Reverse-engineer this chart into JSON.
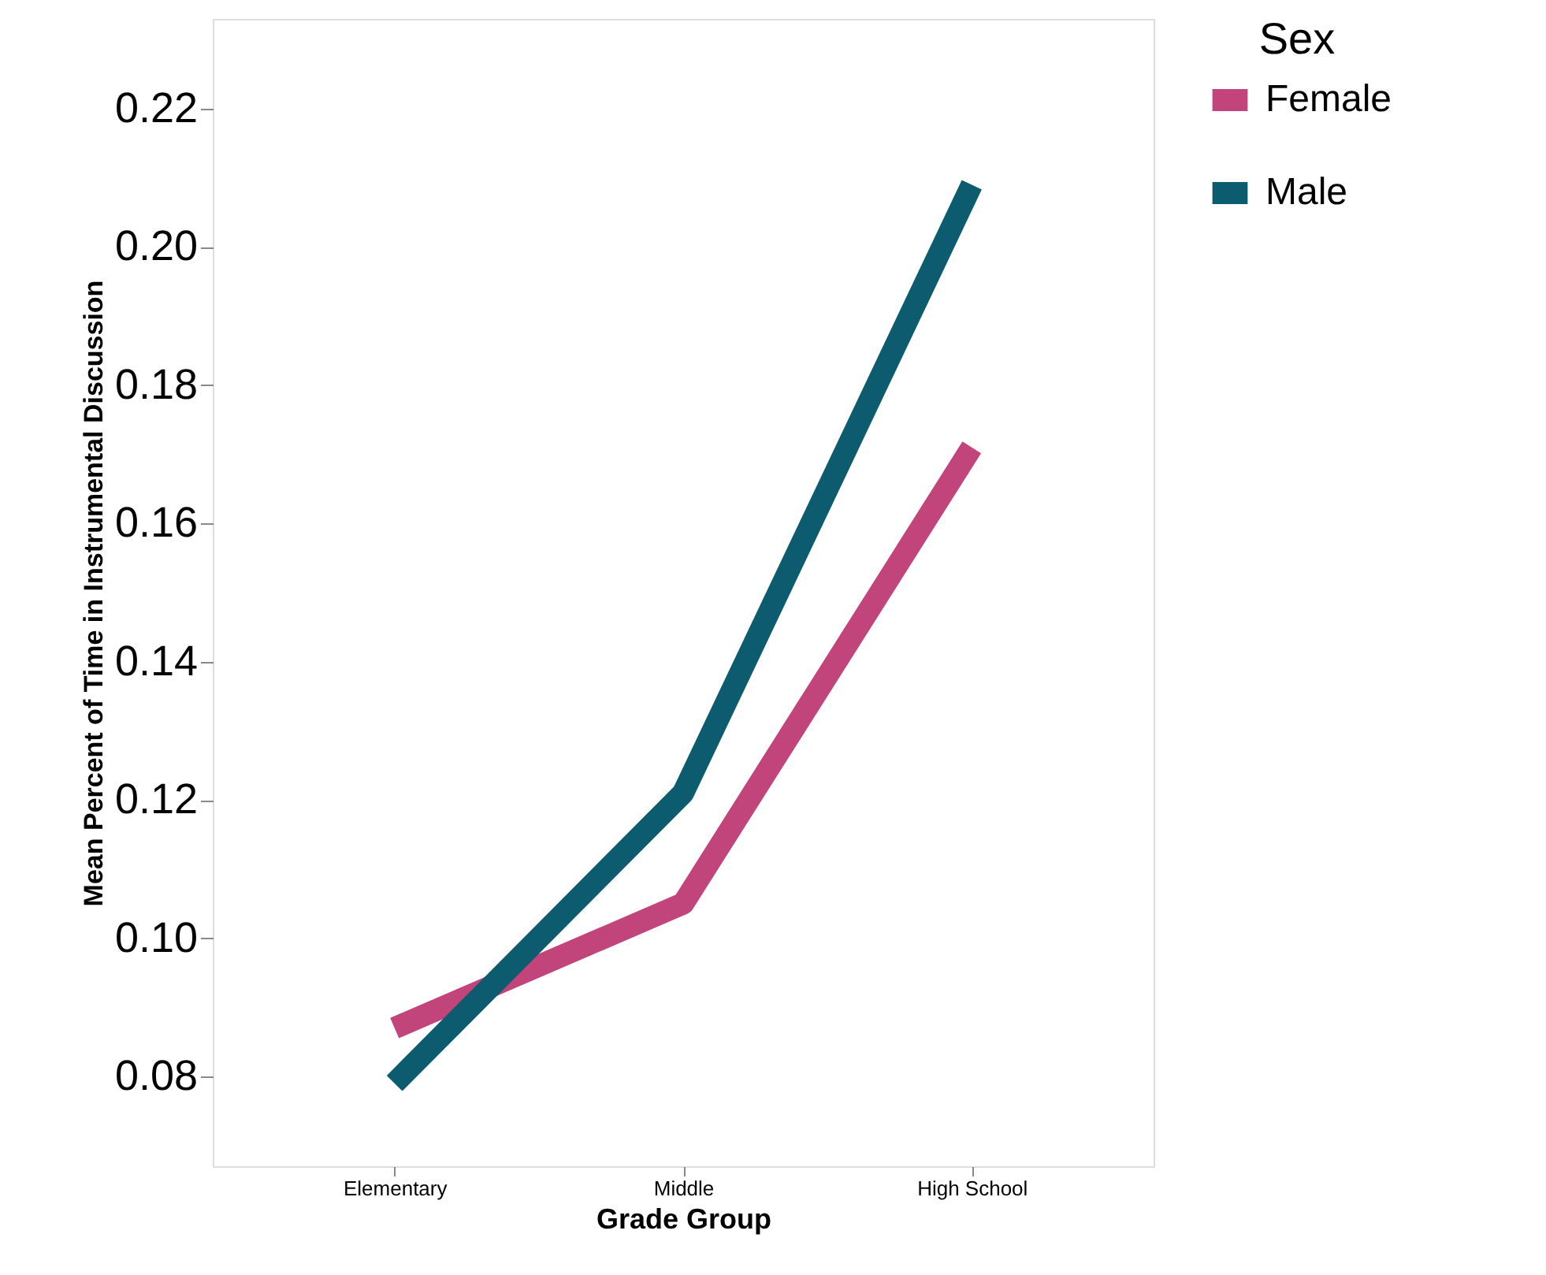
{
  "chart_data": {
    "type": "line",
    "xlabel": "Grade Group",
    "ylabel": "Mean Percent of Time in Instrumental Discussion",
    "legend_title": "Sex",
    "categories": [
      "Elementary",
      "Middle",
      "High School"
    ],
    "series": [
      {
        "name": "Female",
        "color": "#c1447b",
        "values": [
          0.087,
          0.105,
          0.171
        ]
      },
      {
        "name": "Male",
        "color": "#0d5b6f",
        "values": [
          0.079,
          0.121,
          0.209
        ]
      }
    ],
    "ylim": [
      0.067,
      0.233
    ],
    "yticks": [
      0.08,
      {
        "value": 0.1,
        "label": "0.10"
      },
      0.12,
      0.14,
      0.16,
      0.18,
      {
        "value": 0.2,
        "label": "0.20"
      },
      0.22
    ],
    "grid": false,
    "legend": "top right",
    "marker": "none",
    "line_style": "solid"
  }
}
